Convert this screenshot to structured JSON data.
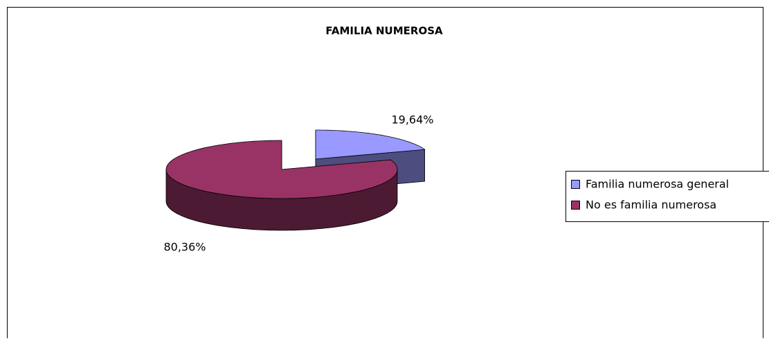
{
  "chart_data": {
    "type": "pie",
    "title": "FAMILIA NUMEROSA",
    "categories": [
      "Familia numerosa general",
      "No es familia numerosa"
    ],
    "values": [
      19.64,
      80.36
    ],
    "value_labels": [
      "19,64%",
      "80,36%"
    ],
    "colors": [
      "#9999ff",
      "#993366"
    ],
    "legend": "right",
    "three_d": true,
    "exploded": [
      true,
      false
    ]
  }
}
